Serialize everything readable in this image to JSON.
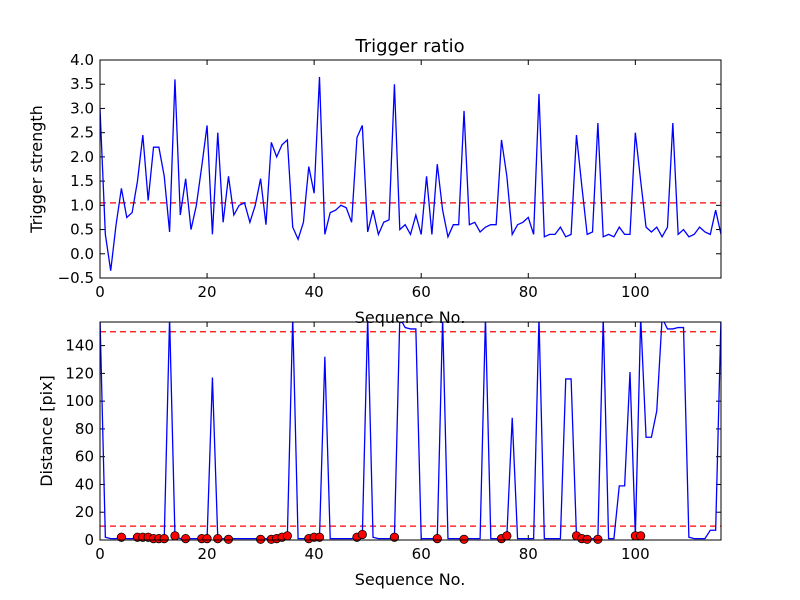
{
  "chart_data": [
    {
      "type": "line",
      "title": "Trigger ratio",
      "xlabel": "Sequence No.",
      "ylabel": "Trigger strength",
      "xlim": [
        0,
        116
      ],
      "ylim": [
        -0.5,
        4.0
      ],
      "xticks": [
        "0",
        "20",
        "40",
        "60",
        "80",
        "100"
      ],
      "yticks": [
        "−0.5",
        "0.0",
        "0.5",
        "1.0",
        "1.5",
        "2.0",
        "2.5",
        "3.0",
        "3.5",
        "4.0"
      ],
      "grid": false,
      "threshold": 1.05,
      "threshold_color": "#ff0000",
      "line_color": "#0000ff",
      "series": [
        {
          "x": [
            0,
            1,
            2,
            3,
            4,
            5,
            6,
            7,
            8,
            9,
            10,
            11,
            12,
            13,
            14,
            15,
            16,
            17,
            18,
            19,
            20,
            21,
            22,
            23,
            24,
            25,
            26,
            27,
            28,
            29,
            30,
            31,
            32,
            33,
            34,
            35,
            36,
            37,
            38,
            39,
            40,
            41,
            42,
            43,
            44,
            45,
            46,
            47,
            48,
            49,
            50,
            51,
            52,
            53,
            54,
            55,
            56,
            57,
            58,
            59,
            60,
            61,
            62,
            63,
            64,
            65,
            66,
            67,
            68,
            69,
            70,
            71,
            72,
            73,
            74,
            75,
            76,
            77,
            78,
            79,
            80,
            81,
            82,
            83,
            84,
            85,
            86,
            87,
            88,
            89,
            90,
            91,
            92,
            93,
            94,
            95,
            96,
            97,
            98,
            99,
            100,
            101,
            102,
            103,
            104,
            105,
            106,
            107,
            108,
            109,
            110,
            111,
            112,
            113,
            114,
            115,
            116
          ],
          "values": [
            3.0,
            0.4,
            -0.35,
            0.6,
            1.35,
            0.75,
            0.85,
            1.5,
            2.45,
            1.1,
            2.2,
            2.2,
            1.6,
            0.45,
            3.6,
            0.8,
            1.55,
            0.5,
            1.0,
            1.8,
            2.65,
            0.4,
            2.5,
            0.65,
            1.6,
            0.8,
            1.0,
            1.05,
            0.65,
            1.0,
            1.55,
            0.6,
            2.3,
            2.0,
            2.25,
            2.35,
            0.55,
            0.3,
            0.65,
            1.8,
            1.25,
            3.65,
            0.4,
            0.85,
            0.9,
            1.0,
            0.95,
            0.65,
            2.4,
            2.65,
            0.45,
            0.9,
            0.4,
            0.65,
            0.7,
            3.5,
            0.5,
            0.6,
            0.4,
            0.8,
            0.4,
            1.6,
            0.4,
            1.85,
            0.9,
            0.35,
            0.6,
            0.6,
            2.95,
            0.6,
            0.65,
            0.45,
            0.55,
            0.6,
            0.6,
            2.35,
            1.6,
            0.4,
            0.6,
            0.65,
            0.75,
            0.4,
            3.3,
            0.35,
            0.4,
            0.4,
            0.55,
            0.35,
            0.4,
            2.45,
            1.4,
            0.4,
            0.45,
            2.7,
            0.35,
            0.4,
            0.35,
            0.55,
            0.4,
            0.4,
            2.5,
            1.5,
            0.55,
            0.45,
            0.55,
            0.35,
            0.55,
            2.7,
            0.4,
            0.5,
            0.35,
            0.4,
            0.55,
            0.45,
            0.4,
            0.9,
            0.4
          ]
        }
      ]
    },
    {
      "type": "line",
      "title": "",
      "xlabel": "Sequence No.",
      "ylabel": "Distance [pix]",
      "xlim": [
        0,
        116
      ],
      "ylim": [
        0,
        157
      ],
      "xticks": [
        "0",
        "20",
        "40",
        "60",
        "80",
        "100"
      ],
      "yticks": [
        "0",
        "20",
        "40",
        "60",
        "80",
        "100",
        "120",
        "140"
      ],
      "grid": false,
      "thresholds": [
        10,
        150
      ],
      "threshold_color": "#ff0000",
      "line_color": "#0000ff",
      "marker_color": "#ff0000",
      "series": [
        {
          "x": [
            0,
            1,
            2,
            3,
            4,
            5,
            6,
            7,
            8,
            9,
            10,
            11,
            12,
            13,
            14,
            15,
            16,
            17,
            18,
            19,
            20,
            21,
            22,
            23,
            24,
            25,
            26,
            27,
            28,
            29,
            30,
            31,
            32,
            33,
            34,
            35,
            36,
            37,
            38,
            39,
            40,
            41,
            42,
            43,
            44,
            45,
            46,
            47,
            48,
            49,
            50,
            51,
            52,
            53,
            54,
            55,
            56,
            57,
            58,
            59,
            60,
            61,
            62,
            63,
            64,
            65,
            66,
            67,
            68,
            69,
            70,
            71,
            72,
            73,
            74,
            75,
            76,
            77,
            78,
            79,
            80,
            81,
            82,
            83,
            84,
            85,
            86,
            87,
            88,
            89,
            90,
            91,
            92,
            93,
            94,
            95,
            96,
            97,
            98,
            99,
            100,
            101,
            102,
            103,
            104,
            105,
            106,
            107,
            108,
            109,
            110,
            111,
            112,
            113,
            114,
            115,
            116
          ],
          "values": [
            160,
            2,
            1,
            1,
            2,
            1,
            1,
            2,
            2,
            2,
            1,
            1,
            1,
            160,
            3,
            1,
            1,
            1,
            1,
            1,
            1,
            117,
            1,
            1,
            1,
            1,
            1,
            1,
            1,
            1,
            1,
            1,
            1,
            2,
            2,
            3,
            160,
            1,
            1,
            1,
            2,
            2,
            132,
            1,
            1,
            1,
            1,
            1,
            2,
            3,
            160,
            2,
            1,
            1,
            1,
            2,
            160,
            153,
            152,
            152,
            1,
            1,
            1,
            1,
            160,
            1,
            1,
            1,
            1,
            1,
            1,
            1,
            160,
            1,
            1,
            1,
            3,
            88,
            1,
            1,
            1,
            1,
            160,
            1,
            1,
            1,
            1,
            116,
            116,
            3,
            1,
            1,
            1,
            1,
            160,
            1,
            1,
            39,
            39,
            121,
            3,
            160,
            74,
            74,
            93,
            160,
            152,
            152,
            153,
            153,
            2,
            1,
            1,
            1,
            7,
            7,
            160
          ]
        },
        {
          "name": "",
          "type": "scatter",
          "x": [
            4,
            7,
            8,
            9,
            10,
            11,
            12,
            14,
            16,
            19,
            20,
            22,
            24,
            30,
            32,
            33,
            34,
            35,
            39,
            40,
            41,
            48,
            49,
            55,
            63,
            68,
            75,
            76,
            89,
            90,
            91,
            93,
            100,
            101
          ],
          "values": [
            2,
            2,
            2,
            2,
            1,
            1,
            1,
            3,
            1,
            1,
            1,
            1,
            0.5,
            0.5,
            0.5,
            1,
            2,
            3,
            1,
            2,
            2,
            2,
            4,
            2,
            1,
            0.5,
            1,
            3,
            3,
            1,
            0.5,
            0.5,
            3,
            3
          ]
        }
      ]
    }
  ]
}
